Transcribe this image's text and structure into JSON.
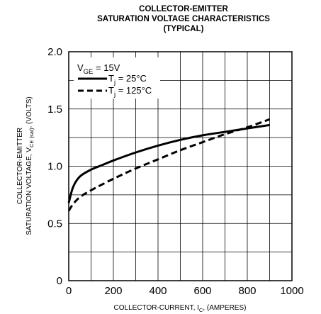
{
  "chart_data": {
    "type": "line",
    "title_lines": [
      "COLLECTOR-EMITTER",
      "SATURATION VOLTAGE CHARACTERISTICS",
      "(TYPICAL)"
    ],
    "xlabel": {
      "main": "COLLECTOR-CURRENT, I",
      "sub": "C",
      "tail": ", (AMPERES)"
    },
    "ylabel": {
      "line1": "COLLECTOR-EMITTER",
      "line2_main": "SATURATION VOLTAGE, V",
      "line2_sub": "CE (sat)",
      "line2_tail": ", (VOLTS)"
    },
    "xlim": [
      0,
      1000
    ],
    "ylim": [
      0,
      2.0
    ],
    "x_ticks": [
      "0",
      "200",
      "400",
      "600",
      "800",
      "1000"
    ],
    "y_ticks": [
      "0",
      "0.5",
      "1.0",
      "1.5",
      "2.0"
    ],
    "x_grid_step": 100,
    "y_grid_step": 0.25,
    "grid": true,
    "annotation": {
      "main": "V",
      "sub": "GE",
      "tail": " = 15V"
    },
    "legend_position": "top-left",
    "series": [
      {
        "name_main": "T",
        "name_sub": "j",
        "name_tail": " = 25°C",
        "style": "solid",
        "x": [
          0,
          20,
          50,
          100,
          150,
          200,
          300,
          400,
          500,
          600,
          700,
          800,
          900
        ],
        "y": [
          0.68,
          0.82,
          0.91,
          0.97,
          1.01,
          1.05,
          1.12,
          1.18,
          1.23,
          1.27,
          1.3,
          1.33,
          1.36
        ]
      },
      {
        "name_main": "T",
        "name_sub": "j",
        "name_tail": " = 125°C",
        "style": "dashed",
        "x": [
          0,
          20,
          50,
          100,
          200,
          300,
          400,
          500,
          600,
          700,
          800,
          900
        ],
        "y": [
          0.61,
          0.67,
          0.73,
          0.79,
          0.89,
          0.98,
          1.06,
          1.14,
          1.21,
          1.28,
          1.34,
          1.41
        ]
      }
    ]
  }
}
